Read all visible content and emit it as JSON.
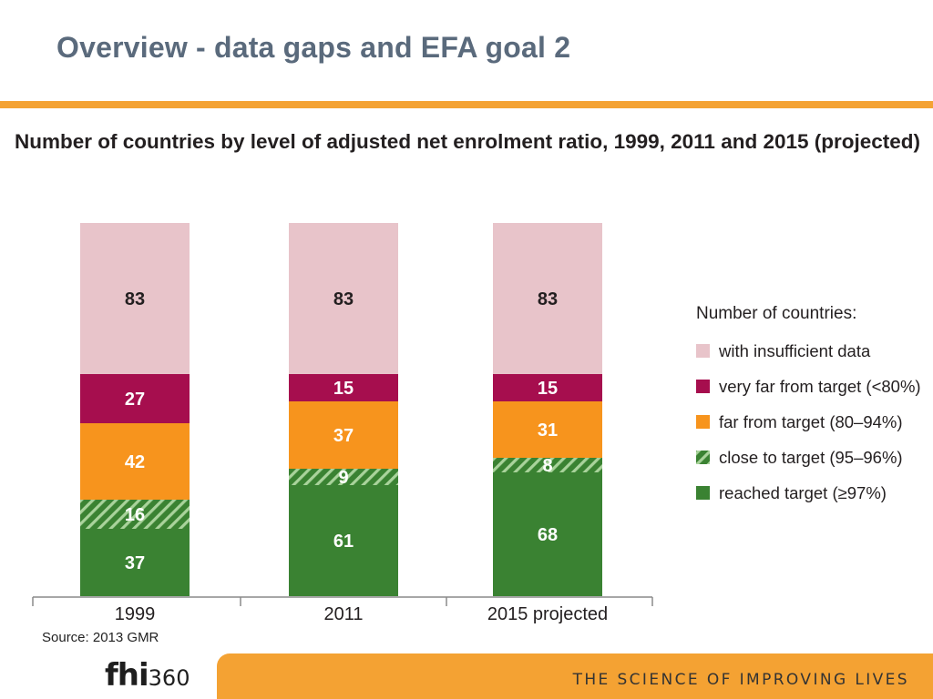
{
  "slide": {
    "title": "Overview - data gaps and EFA goal 2",
    "source": "Source: 2013 GMR",
    "logo_main": "fhi",
    "logo_num": "360",
    "tagline": "THE SCIENCE OF IMPROVING LIVES",
    "accent_color": "#f4a233"
  },
  "chart_data": {
    "type": "bar",
    "stacked": true,
    "title": "Number of countries by level of adjusted net enrolment ratio, 1999, 2011 and 2015 (projected)",
    "categories": [
      "1999",
      "2011",
      "2015 projected"
    ],
    "legend_title": "Number of countries:",
    "legend_position": "right",
    "series": [
      {
        "name": "reached target (≥97%)",
        "values": [
          37,
          61,
          68
        ],
        "color": "#3a8232",
        "pattern": "solid"
      },
      {
        "name": "close to target (95–96%)",
        "values": [
          16,
          9,
          8
        ],
        "color": "#3a8232",
        "pattern": "hatch"
      },
      {
        "name": "far from target (80–94%)",
        "values": [
          42,
          37,
          31
        ],
        "color": "#f7941d",
        "pattern": "solid"
      },
      {
        "name": "very far from target (<80%)",
        "values": [
          27,
          15,
          15
        ],
        "color": "#a60e4e",
        "pattern": "solid"
      },
      {
        "name": "with insufficient data",
        "values": [
          83,
          83,
          83
        ],
        "color": "#e8c4ca",
        "pattern": "solid"
      }
    ]
  }
}
